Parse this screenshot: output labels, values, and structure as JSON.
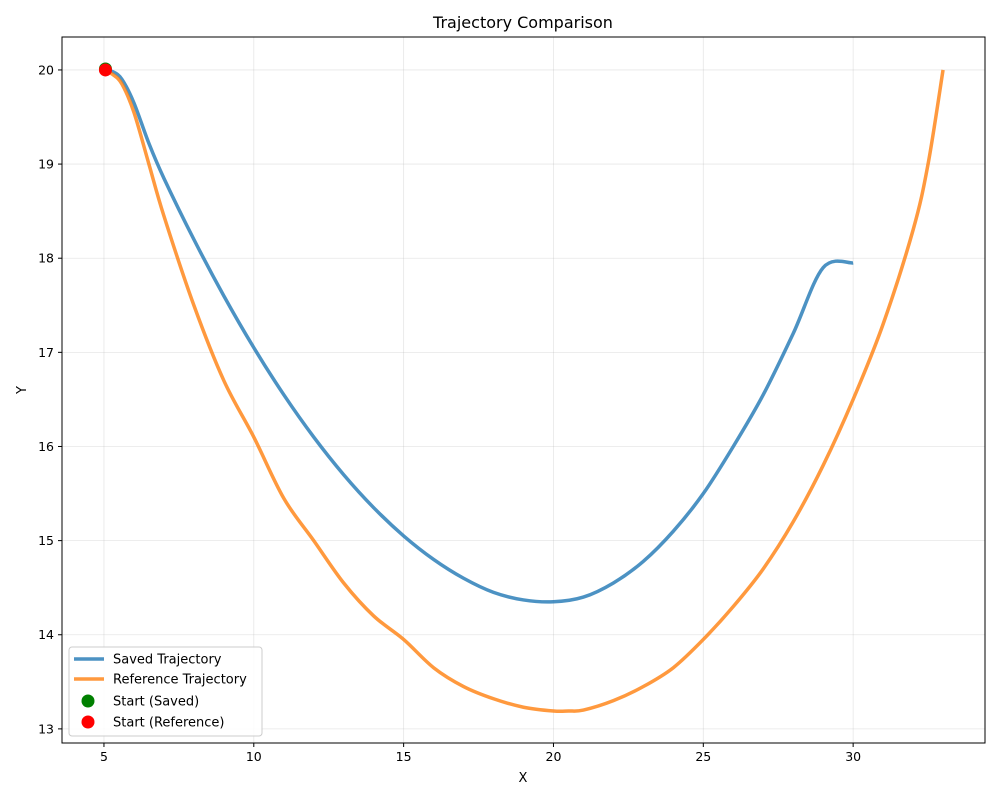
{
  "chart_data": {
    "type": "line",
    "title": "Trajectory Comparison",
    "xlabel": "X",
    "ylabel": "Y",
    "xlim": [
      3.6,
      34.4
    ],
    "ylim": [
      12.85,
      20.35
    ],
    "xticks": [
      5,
      10,
      15,
      20,
      25,
      30
    ],
    "yticks": [
      13,
      14,
      15,
      16,
      17,
      18,
      19,
      20
    ],
    "grid": true,
    "legend_position": "lower-left",
    "series": [
      {
        "name": "Saved Trajectory",
        "color": "#1f77b4",
        "x": [
          5.0,
          5.3,
          5.6,
          6.0,
          6.5,
          7.0,
          8.0,
          9.0,
          10.0,
          11.0,
          12.0,
          13.0,
          14.0,
          15.0,
          16.0,
          17.0,
          18.0,
          19.0,
          20.0,
          21.0,
          22.0,
          23.0,
          24.0,
          25.0,
          26.0,
          27.0,
          28.0,
          29.0,
          30.0
        ],
        "y": [
          20.0,
          19.98,
          19.9,
          19.65,
          19.22,
          18.85,
          18.2,
          17.6,
          17.05,
          16.55,
          16.1,
          15.7,
          15.35,
          15.05,
          14.8,
          14.6,
          14.45,
          14.37,
          14.35,
          14.4,
          14.55,
          14.78,
          15.1,
          15.5,
          16.0,
          16.55,
          17.2,
          17.9,
          17.95
        ]
      },
      {
        "name": "Reference Trajectory",
        "color": "#ff7f0e",
        "x": [
          5.0,
          5.3,
          5.6,
          6.0,
          6.5,
          7.0,
          8.0,
          9.0,
          10.0,
          11.0,
          12.0,
          13.0,
          14.0,
          15.0,
          16.0,
          17.0,
          18.0,
          19.0,
          20.0,
          20.5,
          21.0,
          22.0,
          23.0,
          24.0,
          25.0,
          26.0,
          27.0,
          28.0,
          29.0,
          30.0,
          31.0,
          32.0,
          32.5,
          33.0
        ],
        "y": [
          20.0,
          19.95,
          19.85,
          19.55,
          19.0,
          18.45,
          17.5,
          16.7,
          16.1,
          15.45,
          15.0,
          14.55,
          14.2,
          13.95,
          13.65,
          13.45,
          13.32,
          13.23,
          13.19,
          13.19,
          13.2,
          13.3,
          13.45,
          13.65,
          13.95,
          14.3,
          14.7,
          15.2,
          15.8,
          16.5,
          17.3,
          18.3,
          19.0,
          20.0
        ]
      }
    ],
    "markers": [
      {
        "name": "Start (Saved)",
        "color": "#008000",
        "x": 5.05,
        "y": 20.01
      },
      {
        "name": "Start (Reference)",
        "color": "#ff0000",
        "x": 5.05,
        "y": 20.0
      }
    ]
  }
}
